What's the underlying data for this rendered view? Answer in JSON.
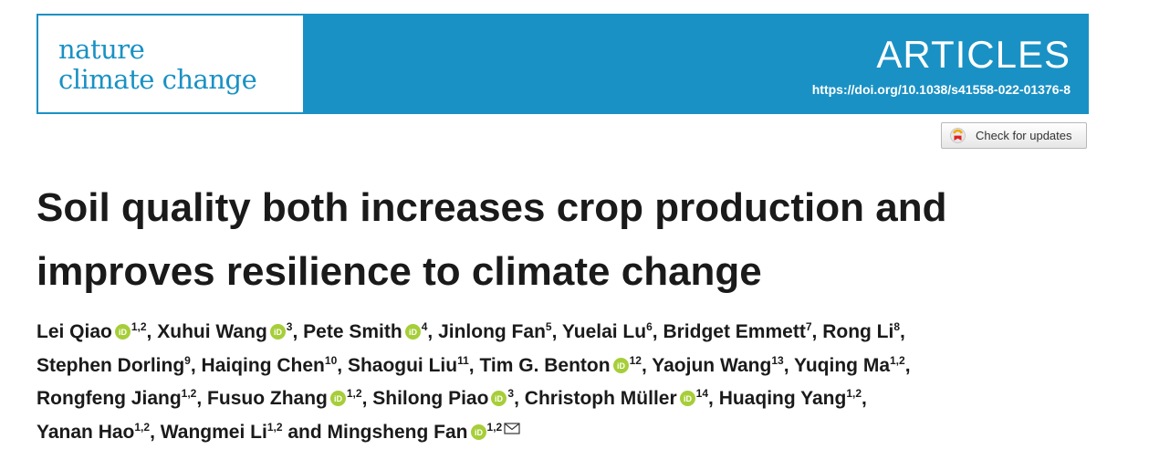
{
  "journal": {
    "logo_line1": "nature",
    "logo_line2": "climate change",
    "section": "ARTICLES",
    "doi": "https://doi.org/10.1038/s41558-022-01376-8",
    "brand_color": "#1a91c4"
  },
  "updates_button": {
    "label": "Check for updates",
    "icon": "check-for-updates-icon"
  },
  "title": {
    "line1": "Soil quality both increases crop production and",
    "line2": "improves resilience to climate change"
  },
  "authors": [
    {
      "name": "Lei Qiao",
      "orcid": true,
      "aff": "1,2"
    },
    {
      "name": "Xuhui Wang",
      "orcid": true,
      "aff": "3"
    },
    {
      "name": "Pete Smith",
      "orcid": true,
      "aff": "4"
    },
    {
      "name": "Jinlong Fan",
      "orcid": false,
      "aff": "5"
    },
    {
      "name": "Yuelai Lu",
      "orcid": false,
      "aff": "6"
    },
    {
      "name": "Bridget Emmett",
      "orcid": false,
      "aff": "7"
    },
    {
      "name": "Rong Li",
      "orcid": false,
      "aff": "8"
    },
    {
      "name": "Stephen Dorling",
      "orcid": false,
      "aff": "9"
    },
    {
      "name": "Haiqing Chen",
      "orcid": false,
      "aff": "10"
    },
    {
      "name": "Shaogui Liu",
      "orcid": false,
      "aff": "11"
    },
    {
      "name": "Tim G. Benton",
      "orcid": true,
      "aff": "12"
    },
    {
      "name": "Yaojun Wang",
      "orcid": false,
      "aff": "13"
    },
    {
      "name": "Yuqing Ma",
      "orcid": false,
      "aff": "1,2"
    },
    {
      "name": "Rongfeng Jiang",
      "orcid": false,
      "aff": "1,2"
    },
    {
      "name": "Fusuo Zhang",
      "orcid": true,
      "aff": "1,2"
    },
    {
      "name": "Shilong Piao",
      "orcid": true,
      "aff": "3"
    },
    {
      "name": "Christoph Müller",
      "orcid": true,
      "aff": "14"
    },
    {
      "name": "Huaqing Yang",
      "orcid": false,
      "aff": "1,2"
    },
    {
      "name": "Yanan Hao",
      "orcid": false,
      "aff": "1,2"
    },
    {
      "name": "Wangmei Li",
      "orcid": false,
      "aff": "1,2"
    },
    {
      "name": "Mingsheng Fan",
      "orcid": true,
      "aff": "1,2",
      "corresponding": true
    }
  ],
  "author_lines": [
    [
      0,
      1,
      2,
      3,
      4,
      5,
      6
    ],
    [
      7,
      8,
      9,
      10,
      11,
      12
    ],
    [
      13,
      14,
      15,
      16,
      17
    ],
    [
      18,
      19,
      20
    ]
  ],
  "last_author_connector": "and",
  "icons": {
    "orcid": "orcid-icon",
    "corresponding": "envelope-icon"
  }
}
